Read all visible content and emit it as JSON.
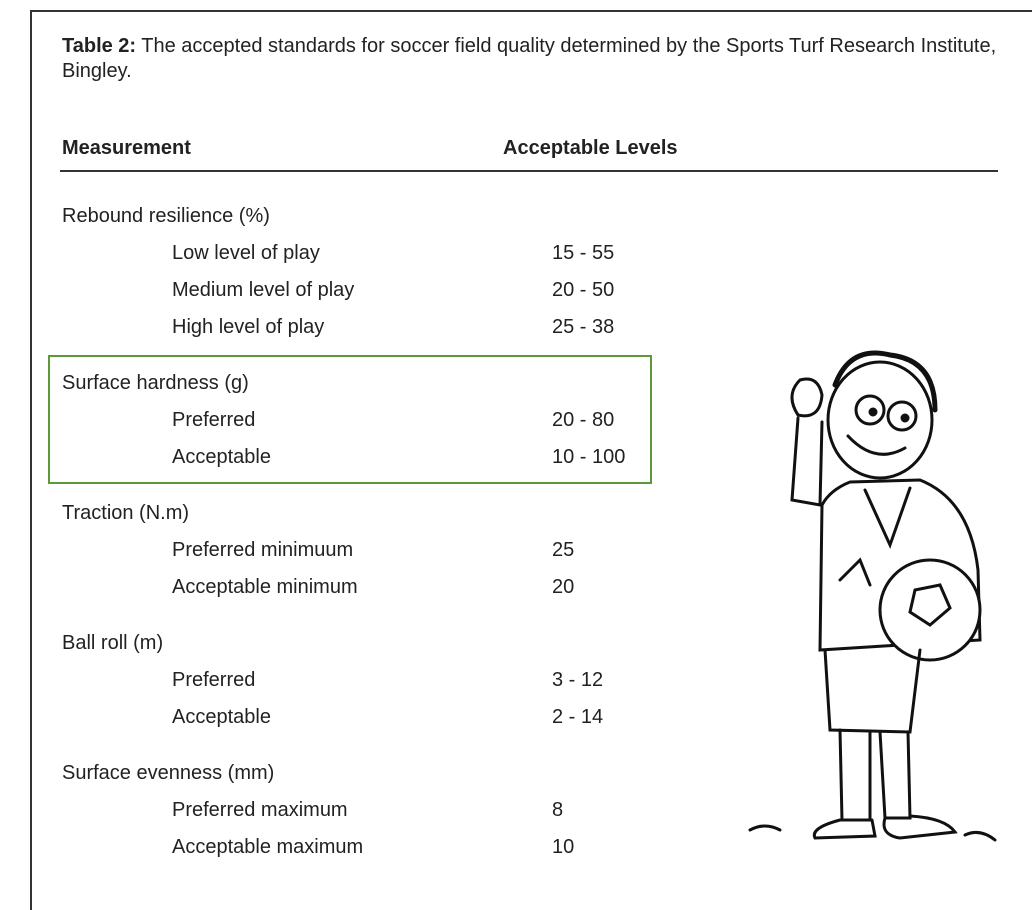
{
  "caption": {
    "label": "Table 2:",
    "text": " The accepted standards for soccer field quality determined by the Sports Turf Research Institute, Bingley."
  },
  "table": {
    "headers": [
      "Measurement",
      "Acceptable Levels"
    ],
    "groups": [
      {
        "name": "Rebound resilience (%)",
        "rows": [
          [
            "Low level of play",
            "15 - 55"
          ],
          [
            "Medium level of play",
            "20 - 50"
          ],
          [
            "High level of play",
            "25 - 38"
          ]
        ]
      },
      {
        "name": "Surface hardness (g)",
        "rows": [
          [
            "Preferred",
            "20 - 80"
          ],
          [
            "Acceptable",
            "10 - 100"
          ]
        ]
      },
      {
        "name": "Traction (N.m)",
        "rows": [
          [
            "Preferred minimuum",
            "25"
          ],
          [
            "Acceptable minimum",
            "20"
          ]
        ]
      },
      {
        "name": "Ball roll (m)",
        "rows": [
          [
            "Preferred",
            "3 - 12"
          ],
          [
            "Acceptable",
            "2 - 14"
          ]
        ]
      },
      {
        "name": "Surface evenness (mm)",
        "rows": [
          [
            "Preferred maximum",
            "8"
          ],
          [
            "Acceptable maximum",
            "10"
          ]
        ]
      }
    ]
  }
}
